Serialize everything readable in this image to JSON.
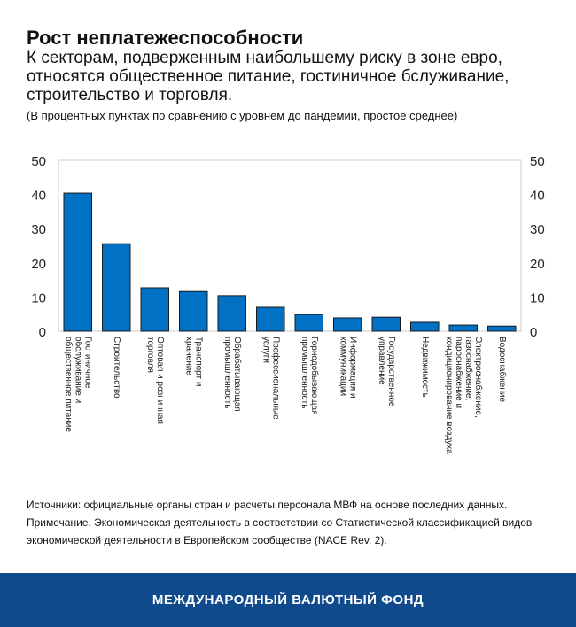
{
  "chart_data": {
    "type": "bar",
    "title": "Рост неплатежеспособности",
    "subtitle": "К секторам, подверженным наибольшему риску в зоне евро, относятся общественное питание, гостиничное бслуживание, строительство и торговля.",
    "note": "(В процентных пунктах по сравнению с уровнем до пандемии, простое среднее)",
    "categories": [
      "Гостиничное\nобслуживание и\nобщественное питание",
      "Строительство",
      "Оптовая и розничная\nторговля",
      "Транспорт и\nхранение",
      "Обрабатывающая\nпромышленность",
      "Профессиональные\nуслуги",
      "Горнодобывающая\nпромышленность",
      "Информация и\nкоммуникации",
      "Государственное\nуправление",
      "Недвижимость",
      "Электроснабжение,\nгазоснабжение,\nпароснабжение и\nкондиционирование воздуха",
      "Водоснабжение"
    ],
    "values": [
      40.4,
      25.6,
      12.7,
      11.6,
      10.4,
      7.0,
      4.9,
      3.9,
      4.1,
      2.6,
      1.8,
      1.5
    ],
    "ylim": [
      0,
      50
    ],
    "yticks": [
      "0",
      "10",
      "20",
      "30",
      "40",
      "50"
    ],
    "y_axis_both_sides": true,
    "grid": false,
    "bar_color": "#0071c5"
  },
  "sources": "Источники: официальные органы стран и расчеты персонала МВФ на основе последних данных.",
  "footnote": "Примечание. Экономическая деятельность в соответствии со Статистической классификацией видов экономической деятельности в Европейском сообществе (NACE Rev. 2).",
  "footer": "МЕЖДУНАРОДНЫЙ ВАЛЮТНЫЙ ФОНД"
}
